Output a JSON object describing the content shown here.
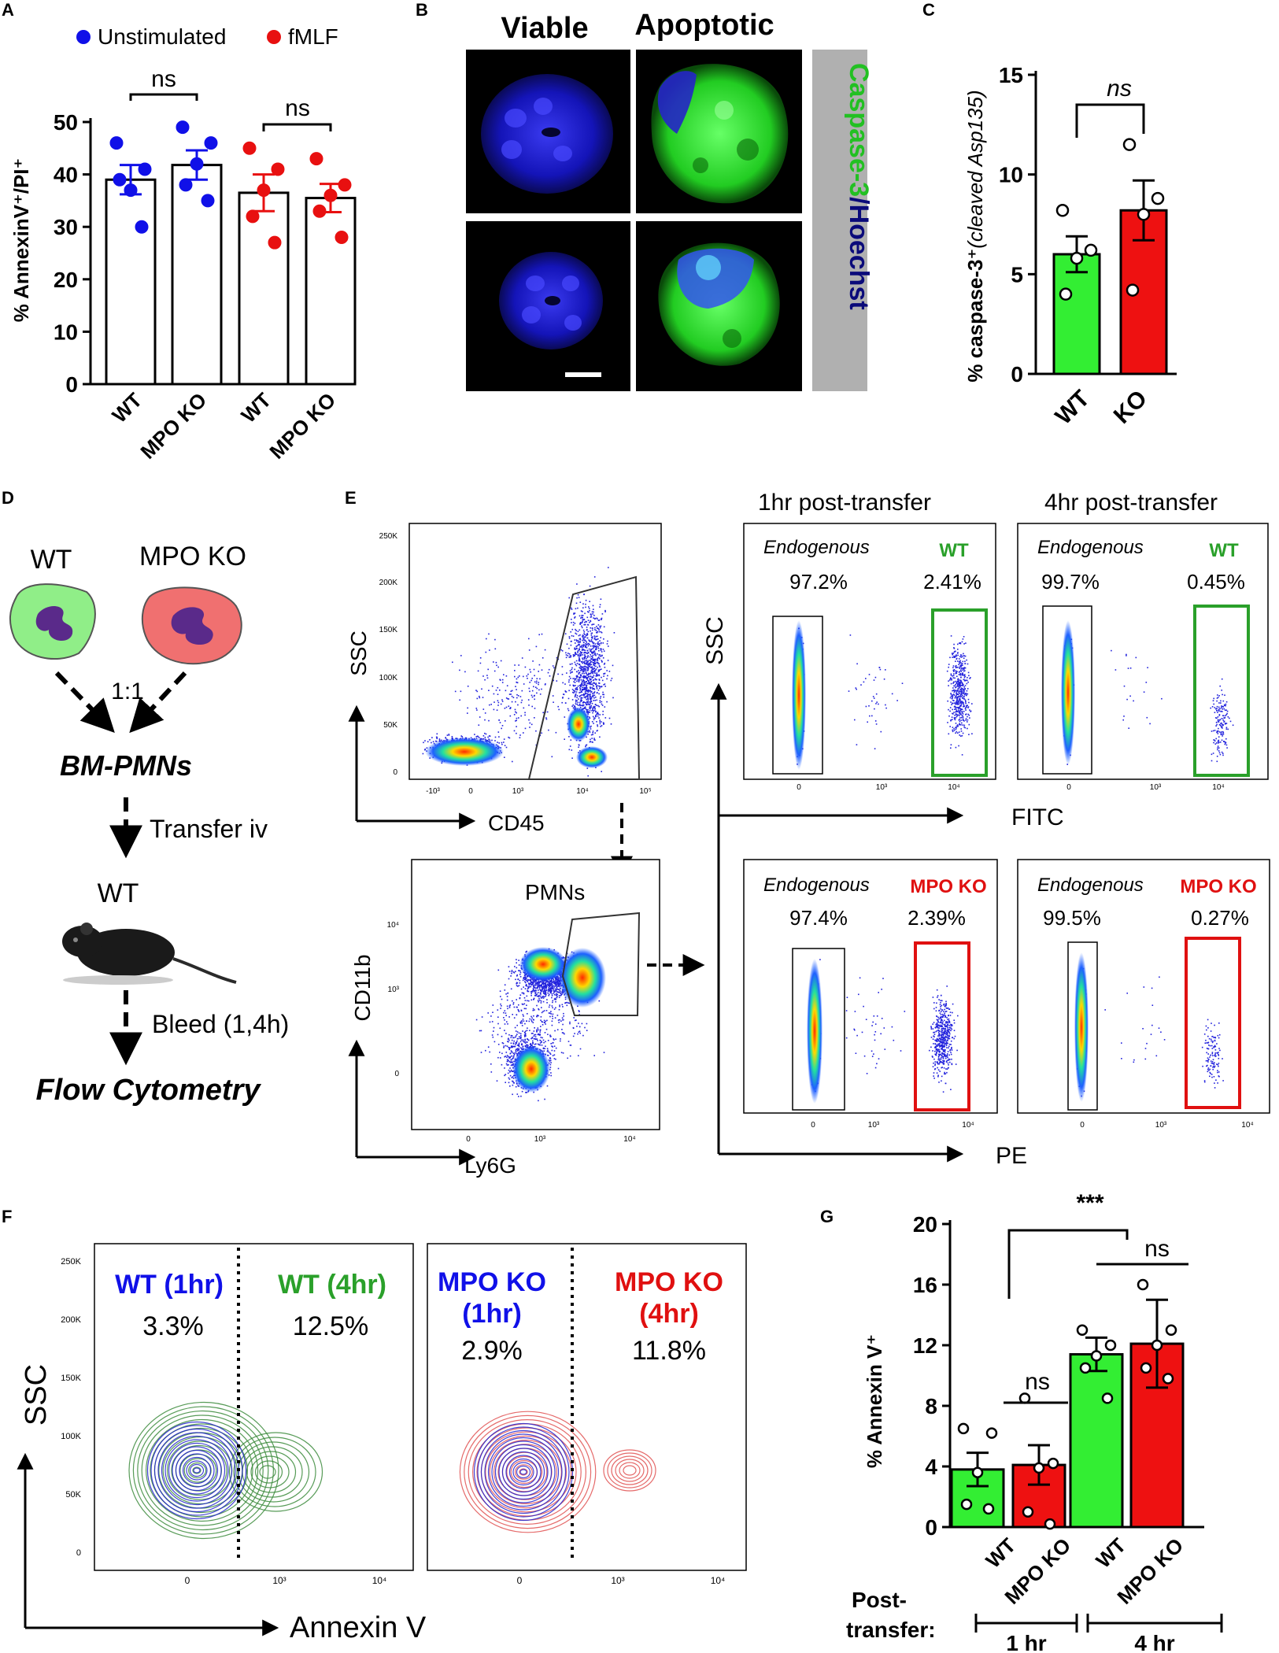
{
  "colors": {
    "blue": "#1010e8",
    "red": "#e81010",
    "green": "#22c022",
    "barGreen": "#33ee33",
    "barRed": "#ee1111",
    "navy": "#0a0a7a",
    "gray": "#b0b0b0",
    "mpoRed": "#e01010",
    "wtGreen": "#2aa02a",
    "contourGreen": "#3a8a3a",
    "contourRed": "#e05050",
    "contourBlue": "#2222cc"
  },
  "panelA": {
    "label": "A",
    "legend": [
      "Unstimulated",
      "fMLF"
    ],
    "ylabel": "% AnnexinV⁺/PI⁺",
    "ns": [
      "ns",
      "ns"
    ],
    "xticks": [
      "WT",
      "MPO KO",
      "WT",
      "MPO KO"
    ]
  },
  "panelB": {
    "label": "B",
    "colHeaders": [
      "Viable",
      "Apoptotic"
    ],
    "sideLabelGreen": "Caspase-3",
    "sideLabelSlash": "/",
    "sideLabelBlue": "Hoechst"
  },
  "panelC": {
    "label": "C",
    "ylabelMain": "% caspase-3⁺",
    "ylabelSub": "(cleaved Asp135)",
    "ns": "ns",
    "xticks": [
      "WT",
      "KO"
    ]
  },
  "panelD": {
    "label": "D",
    "cell1": "WT",
    "cell2": "MPO KO",
    "ratio": "1:1",
    "bm": "BM-PMNs",
    "transfer": "Transfer iv",
    "host": "WT",
    "bleed": "Bleed (1,4h)",
    "flow": "Flow Cytometry"
  },
  "panelE": {
    "label": "E",
    "scatter1": {
      "ylabel": "SSC",
      "xlabel": "CD45",
      "yticks": [
        "250K",
        "200K",
        "150K",
        "100K",
        "50K",
        "0"
      ],
      "xticks": [
        "-10³",
        "0",
        "10³",
        "10⁴",
        "10⁵"
      ]
    },
    "scatter2": {
      "ylabel": "CD11b",
      "xlabel": "Ly6G",
      "gate": "PMNs",
      "yticks": [
        "10⁴",
        "10³",
        "0"
      ],
      "xticks": [
        "0",
        "10³",
        "10⁴"
      ]
    },
    "colHeader1": "1hr  post-transfer",
    "colHeader2": "4hr  post-transfer",
    "endog": "Endogenous",
    "wt": "WT",
    "mpoko": "MPO KO",
    "plots": [
      {
        "endoPct": "97.2%",
        "otherPct": "2.41%"
      },
      {
        "endoPct": "99.7%",
        "otherPct": "0.45%"
      },
      {
        "endoPct": "97.4%",
        "otherPct": "2.39%"
      },
      {
        "endoPct": "99.5%",
        "otherPct": "0.27%"
      }
    ],
    "ssc": "SSC",
    "fitc": "FITC",
    "pe": "PE",
    "smallTicks": [
      "0",
      "10³",
      "10⁴"
    ]
  },
  "panelF": {
    "label": "F",
    "ylabel": "SSC",
    "xlabel": "Annexin V",
    "yticks": [
      "250K",
      "200K",
      "150K",
      "100K",
      "50K",
      "0"
    ],
    "xticks": [
      "0",
      "10³",
      "10⁴"
    ],
    "left": {
      "lab1": "WT (1hr)",
      "pct1": "3.3%",
      "lab2": "WT (4hr)",
      "pct2": "12.5%"
    },
    "right": {
      "lab1a": "MPO KO",
      "lab1b": "(1hr)",
      "pct1": "2.9%",
      "lab2a": "MPO KO",
      "lab2b": "(4hr)",
      "pct2": "11.8%"
    }
  },
  "panelG": {
    "label": "G",
    "ylabel": "% Annexin V⁺",
    "sig": "***",
    "ns": [
      "ns",
      "ns"
    ],
    "xticks": [
      "WT",
      "MPO KO",
      "WT",
      "MPO  KO"
    ],
    "post": "Post-",
    "transfer": "transfer:",
    "hr1": "1 hr",
    "hr4": "4 hr"
  },
  "chart_data": [
    {
      "panel": "A",
      "type": "bar",
      "ylabel": "% AnnexinV+/PI+",
      "ylim": [
        0,
        50
      ],
      "yticks": [
        0,
        10,
        20,
        30,
        40,
        50
      ],
      "categories": [
        "WT",
        "MPO KO",
        "WT",
        "MPO KO"
      ],
      "groups": [
        "Unstimulated",
        "Unstimulated",
        "fMLF",
        "fMLF"
      ],
      "values": [
        39,
        41.8,
        36.5,
        35.5
      ],
      "sem": [
        2.8,
        2.8,
        3.5,
        2.7
      ],
      "points": [
        [
          46,
          41,
          37,
          39,
          30
        ],
        [
          49,
          46,
          42,
          38,
          35
        ],
        [
          45,
          41,
          37,
          32,
          27
        ],
        [
          43,
          38,
          36,
          33,
          28
        ]
      ]
    },
    {
      "panel": "C",
      "type": "bar",
      "ylabel": "% caspase-3+ (cleaved Asp135)",
      "ylim": [
        0,
        15
      ],
      "yticks": [
        0,
        5,
        10,
        15
      ],
      "categories": [
        "WT",
        "KO"
      ],
      "values": [
        6.0,
        8.2
      ],
      "sem": [
        0.9,
        1.5
      ],
      "points": [
        [
          8.2,
          6.2,
          5.8,
          4.0
        ],
        [
          11.5,
          8.8,
          8.0,
          4.2
        ]
      ]
    },
    {
      "panel": "G",
      "type": "bar",
      "ylabel": "% Annexin V+",
      "ylim": [
        0,
        20
      ],
      "yticks": [
        0,
        4,
        8,
        12,
        16,
        20
      ],
      "categories": [
        "WT",
        "MPO KO",
        "WT",
        "MPO KO"
      ],
      "timepoints": [
        "1 hr",
        "1 hr",
        "4 hr",
        "4 hr"
      ],
      "values": [
        3.8,
        4.1,
        11.4,
        12.1
      ],
      "sem": [
        1.1,
        1.3,
        1.1,
        2.9
      ],
      "points": [
        [
          6.5,
          6.2,
          3.6,
          1.5,
          1.2
        ],
        [
          8.5,
          4.2,
          3.9,
          1.0,
          0.2
        ],
        [
          13.0,
          12.0,
          11.3,
          10.5,
          8.5
        ],
        [
          16.0,
          13.0,
          12.0,
          10.5,
          9.8
        ]
      ]
    }
  ]
}
